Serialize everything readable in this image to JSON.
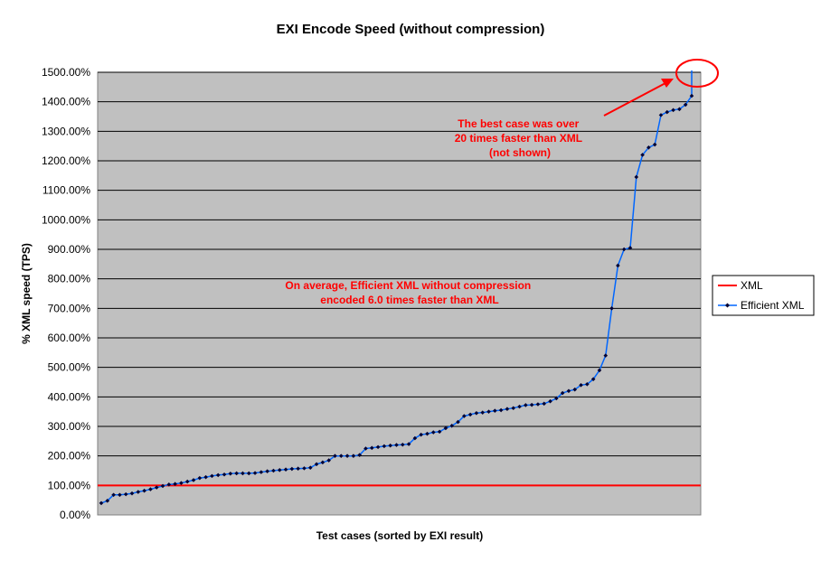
{
  "chart_data": {
    "type": "line",
    "title": "EXI Encode Speed (without compression)",
    "xlabel": "Test cases (sorted by EXI result)",
    "ylabel": "% XML speed (TPS)",
    "ylim": [
      0,
      1500
    ],
    "yticks": [
      0,
      100,
      200,
      300,
      400,
      500,
      600,
      700,
      800,
      900,
      1000,
      1100,
      1200,
      1300,
      1400,
      1500
    ],
    "ytick_labels": [
      "0.00%",
      "100.00%",
      "200.00%",
      "300.00%",
      "400.00%",
      "500.00%",
      "600.00%",
      "700.00%",
      "800.00%",
      "900.00%",
      "1000.00%",
      "1100.00%",
      "1200.00%",
      "1300.00%",
      "1400.00%",
      "1500.00%"
    ],
    "grid": "horizontal",
    "plot_background": "#c0c0c0",
    "legend_position": "right",
    "series": [
      {
        "name": "XML",
        "color": "#ff0000",
        "marker": "none",
        "constant": 100
      },
      {
        "name": "Efficient XML",
        "color": "#0066ff",
        "marker": "diamond",
        "values": [
          40,
          48,
          68,
          68,
          70,
          73,
          78,
          82,
          87,
          93,
          98,
          103,
          105,
          108,
          113,
          118,
          125,
          128,
          132,
          135,
          137,
          140,
          141,
          141,
          141,
          142,
          145,
          148,
          150,
          152,
          154,
          156,
          157,
          158,
          160,
          172,
          178,
          185,
          200,
          200,
          200,
          200,
          203,
          225,
          227,
          230,
          233,
          235,
          237,
          238,
          240,
          260,
          272,
          275,
          280,
          282,
          294,
          302,
          315,
          335,
          340,
          345,
          347,
          350,
          353,
          355,
          359,
          362,
          367,
          372,
          373,
          375,
          377,
          385,
          395,
          413,
          420,
          425,
          440,
          443,
          460,
          490,
          540,
          700,
          845,
          900,
          905,
          1145,
          1220,
          1245,
          1255,
          1355,
          1365,
          1372,
          1375,
          1390,
          1420
        ],
        "off_scale_last": true
      }
    ],
    "annotations": [
      {
        "lines": [
          "The best case was over",
          "20 times faster than XML",
          "(not shown)"
        ]
      },
      {
        "lines": [
          "On average, Efficient XML without compression",
          "encoded 6.0 times faster than XML"
        ]
      }
    ]
  }
}
